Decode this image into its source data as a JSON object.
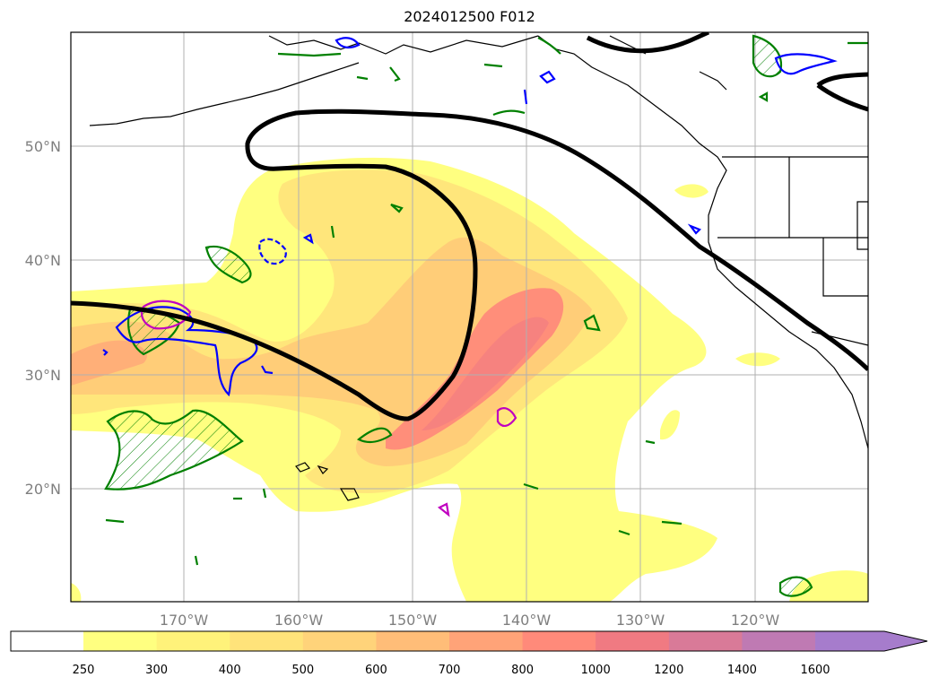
{
  "title": "2024012500 F012",
  "map": {
    "lat_labels": [
      "50°N",
      "40°N",
      "30°N",
      "20°N"
    ],
    "lon_labels": [
      "170°W",
      "160°W",
      "150°W",
      "140°W",
      "130°W",
      "120°W"
    ],
    "gridlines": true
  },
  "colorbar": {
    "labels": [
      "250",
      "300",
      "400",
      "500",
      "600",
      "700",
      "800",
      "1000",
      "1200",
      "1400",
      "1600"
    ],
    "colors": [
      "#ffff80",
      "#fff27a",
      "#ffe37a",
      "#ffd37a",
      "#ffbd78",
      "#ffa378",
      "#ff8a7a",
      "#f07a82",
      "#d97a98",
      "#bf7ab3",
      "#a67ccc"
    ],
    "extend": "max"
  },
  "contour_colors": {
    "fill_low": "#ffff80",
    "fill_mid": "#ffd37a",
    "fill_high": "#ff8a7a",
    "black_line": "#000000",
    "green_line": "#008000",
    "blue_line": "#0000ff",
    "magenta_line": "#c000c0"
  }
}
